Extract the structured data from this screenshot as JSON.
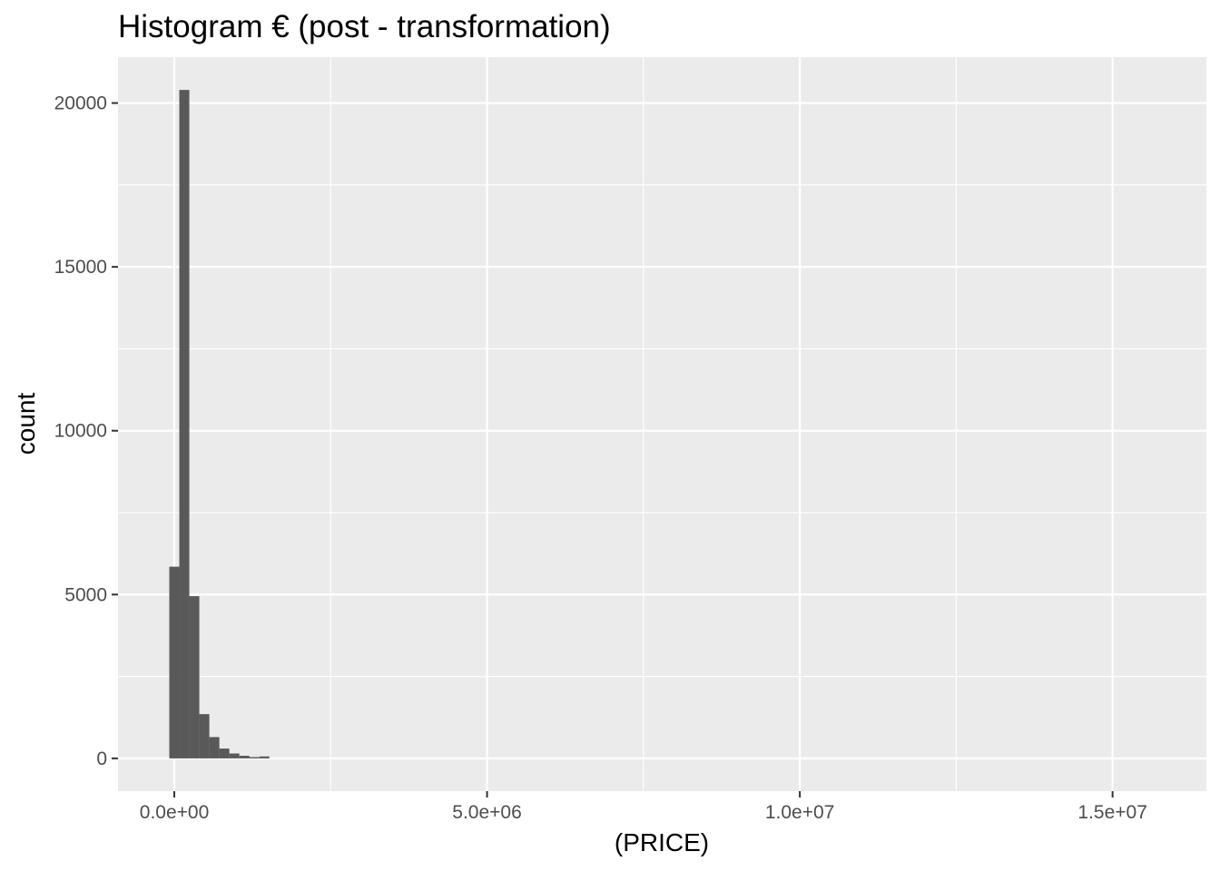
{
  "chart_data": {
    "type": "bar",
    "title": "Histogram € (post - transformation)",
    "xlabel": "(PRICE)",
    "ylabel": "count",
    "xlim": [
      -900000,
      16500000
    ],
    "ylim": [
      -1000,
      21400
    ],
    "x_ticks": [
      {
        "value": 0,
        "label": "0.0e+00"
      },
      {
        "value": 5000000,
        "label": "5.0e+06"
      },
      {
        "value": 10000000,
        "label": "1.0e+07"
      },
      {
        "value": 15000000,
        "label": "1.5e+07"
      }
    ],
    "y_ticks": [
      {
        "value": 0,
        "label": "0"
      },
      {
        "value": 5000,
        "label": "5000"
      },
      {
        "value": 10000,
        "label": "10000"
      },
      {
        "value": 15000,
        "label": "15000"
      },
      {
        "value": 20000,
        "label": "20000"
      }
    ],
    "x_minor_breaks": [
      2500000,
      7500000,
      12500000
    ],
    "y_minor_breaks": [
      2500,
      7500,
      12500,
      17500
    ],
    "bin_width": 160000,
    "bins": [
      {
        "x0": -80000,
        "x1": 80000,
        "count": 5850
      },
      {
        "x0": 80000,
        "x1": 240000,
        "count": 20400
      },
      {
        "x0": 240000,
        "x1": 400000,
        "count": 4950
      },
      {
        "x0": 400000,
        "x1": 560000,
        "count": 1350
      },
      {
        "x0": 560000,
        "x1": 720000,
        "count": 650
      },
      {
        "x0": 720000,
        "x1": 880000,
        "count": 300
      },
      {
        "x0": 880000,
        "x1": 1040000,
        "count": 150
      },
      {
        "x0": 1040000,
        "x1": 1200000,
        "count": 80
      },
      {
        "x0": 1200000,
        "x1": 1360000,
        "count": 40
      },
      {
        "x0": 1360000,
        "x1": 1520000,
        "count": 60
      }
    ],
    "grid": true,
    "legend": "none",
    "colors": {
      "panel_background": "#EBEBEB",
      "grid_line": "#FFFFFF",
      "bar_fill": "#595959",
      "tick_mark": "#333333",
      "tick_label": "#4D4D4D",
      "text": "#000000"
    }
  }
}
